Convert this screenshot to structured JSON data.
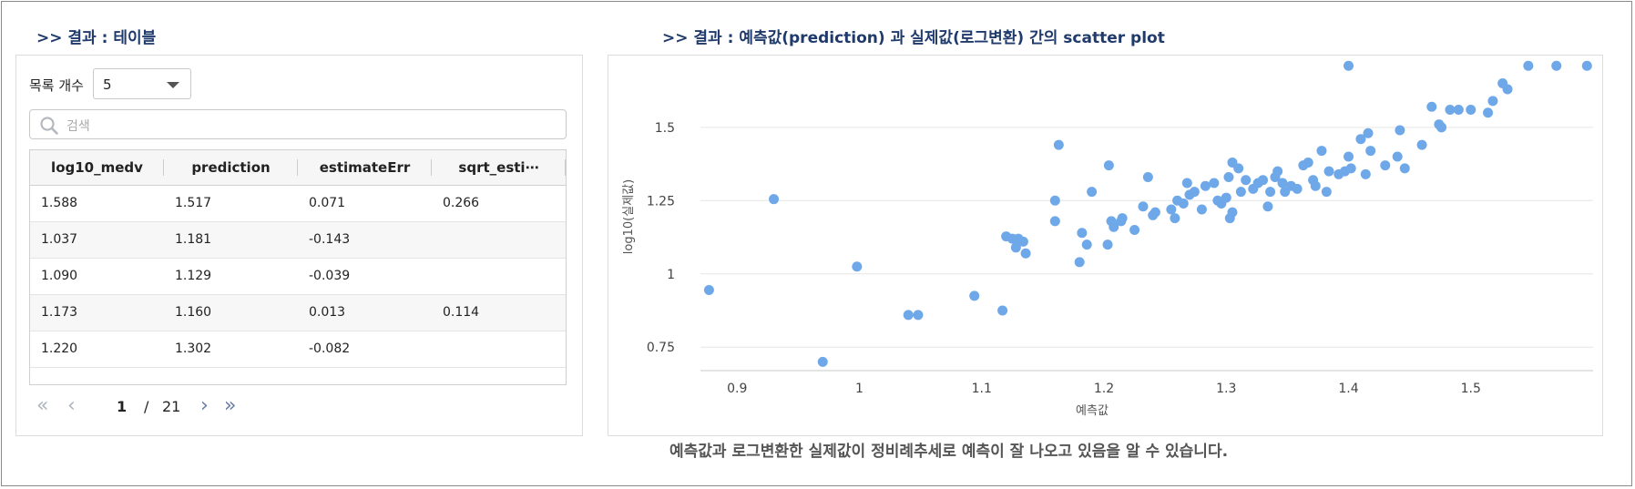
{
  "table_section": {
    "title": ">> 결과 : 테이블",
    "list_count_label": "목록 개수",
    "list_count_value": "5",
    "search_placeholder": "검색",
    "columns": [
      "log10_medv",
      "prediction",
      "estimateErr",
      "sqrt_esti⋯"
    ],
    "rows": [
      [
        "1.588",
        "1.517",
        "0.071",
        "0.266"
      ],
      [
        "1.037",
        "1.181",
        "-0.143",
        ""
      ],
      [
        "1.090",
        "1.129",
        "-0.039",
        ""
      ],
      [
        "1.173",
        "1.160",
        "0.013",
        "0.114"
      ],
      [
        "1.220",
        "1.302",
        "-0.082",
        ""
      ]
    ],
    "pagination": {
      "current": "1",
      "separator": "/",
      "total": "21"
    }
  },
  "chart_section": {
    "title": ">> 결과 : 예측값(prediction) 과 실제값(로그변환) 간의 scatter plot",
    "caption": "예측값과 로그변환한 실제값이 정비례추세로 예측이 잘 나오고 있음을 알 수 있습니다."
  },
  "colors": {
    "point": "#6fa8e8",
    "title": "#1f3a6b",
    "grid": "#e6e6e6"
  },
  "chart_data": {
    "type": "scatter",
    "title": "",
    "xlabel": "예측값",
    "ylabel": "log10(실제값)",
    "xlim": [
      0.87,
      1.6
    ],
    "ylim": [
      0.67,
      1.72
    ],
    "xticks": [
      0.9,
      1,
      1.1,
      1.2,
      1.3,
      1.4,
      1.5
    ],
    "xtick_labels": [
      "0.9",
      "1",
      "1.1",
      "1.2",
      "1.3",
      "1.4",
      "1.5"
    ],
    "yticks": [
      0.75,
      1,
      1.25,
      1.5
    ],
    "ytick_labels": [
      "0.75",
      "1",
      "1.25",
      "1.5"
    ],
    "grid": true,
    "points": [
      [
        0.877,
        0.945
      ],
      [
        0.93,
        1.255
      ],
      [
        0.97,
        0.7
      ],
      [
        0.998,
        1.025
      ],
      [
        1.04,
        0.86
      ],
      [
        1.048,
        0.86
      ],
      [
        1.094,
        0.925
      ],
      [
        1.117,
        0.875
      ],
      [
        1.12,
        1.128
      ],
      [
        1.125,
        1.12
      ],
      [
        1.128,
        1.09
      ],
      [
        1.13,
        1.12
      ],
      [
        1.134,
        1.11
      ],
      [
        1.136,
        1.07
      ],
      [
        1.16,
        1.18
      ],
      [
        1.16,
        1.25
      ],
      [
        1.163,
        1.44
      ],
      [
        1.18,
        1.04
      ],
      [
        1.182,
        1.14
      ],
      [
        1.186,
        1.1
      ],
      [
        1.19,
        1.28
      ],
      [
        1.203,
        1.1
      ],
      [
        1.204,
        1.37
      ],
      [
        1.206,
        1.18
      ],
      [
        1.208,
        1.16
      ],
      [
        1.215,
        1.19
      ],
      [
        1.214,
        1.18
      ],
      [
        1.225,
        1.15
      ],
      [
        1.232,
        1.23
      ],
      [
        1.236,
        1.33
      ],
      [
        1.242,
        1.21
      ],
      [
        1.24,
        1.2
      ],
      [
        1.255,
        1.22
      ],
      [
        1.26,
        1.25
      ],
      [
        1.258,
        1.19
      ],
      [
        1.265,
        1.24
      ],
      [
        1.268,
        1.31
      ],
      [
        1.27,
        1.27
      ],
      [
        1.274,
        1.28
      ],
      [
        1.28,
        1.22
      ],
      [
        1.283,
        1.3
      ],
      [
        1.29,
        1.31
      ],
      [
        1.293,
        1.25
      ],
      [
        1.296,
        1.24
      ],
      [
        1.3,
        1.26
      ],
      [
        1.302,
        1.33
      ],
      [
        1.303,
        1.19
      ],
      [
        1.305,
        1.21
      ],
      [
        1.305,
        1.38
      ],
      [
        1.31,
        1.36
      ],
      [
        1.312,
        1.28
      ],
      [
        1.316,
        1.32
      ],
      [
        1.322,
        1.29
      ],
      [
        1.326,
        1.31
      ],
      [
        1.33,
        1.32
      ],
      [
        1.334,
        1.23
      ],
      [
        1.336,
        1.28
      ],
      [
        1.34,
        1.33
      ],
      [
        1.342,
        1.35
      ],
      [
        1.346,
        1.31
      ],
      [
        1.348,
        1.28
      ],
      [
        1.353,
        1.3
      ],
      [
        1.358,
        1.29
      ],
      [
        1.363,
        1.37
      ],
      [
        1.367,
        1.38
      ],
      [
        1.371,
        1.32
      ],
      [
        1.373,
        1.3
      ],
      [
        1.378,
        1.42
      ],
      [
        1.382,
        1.28
      ],
      [
        1.384,
        1.35
      ],
      [
        1.392,
        1.34
      ],
      [
        1.397,
        1.35
      ],
      [
        1.4,
        1.71
      ],
      [
        1.4,
        1.4
      ],
      [
        1.402,
        1.36
      ],
      [
        1.41,
        1.46
      ],
      [
        1.414,
        1.34
      ],
      [
        1.416,
        1.48
      ],
      [
        1.418,
        1.42
      ],
      [
        1.43,
        1.37
      ],
      [
        1.44,
        1.4
      ],
      [
        1.442,
        1.49
      ],
      [
        1.446,
        1.36
      ],
      [
        1.46,
        1.44
      ],
      [
        1.468,
        1.57
      ],
      [
        1.474,
        1.51
      ],
      [
        1.476,
        1.5
      ],
      [
        1.483,
        1.56
      ],
      [
        1.49,
        1.56
      ],
      [
        1.5,
        1.56
      ],
      [
        1.514,
        1.55
      ],
      [
        1.518,
        1.59
      ],
      [
        1.526,
        1.65
      ],
      [
        1.53,
        1.63
      ],
      [
        1.547,
        1.71
      ],
      [
        1.57,
        1.71
      ],
      [
        1.595,
        1.71
      ]
    ]
  }
}
